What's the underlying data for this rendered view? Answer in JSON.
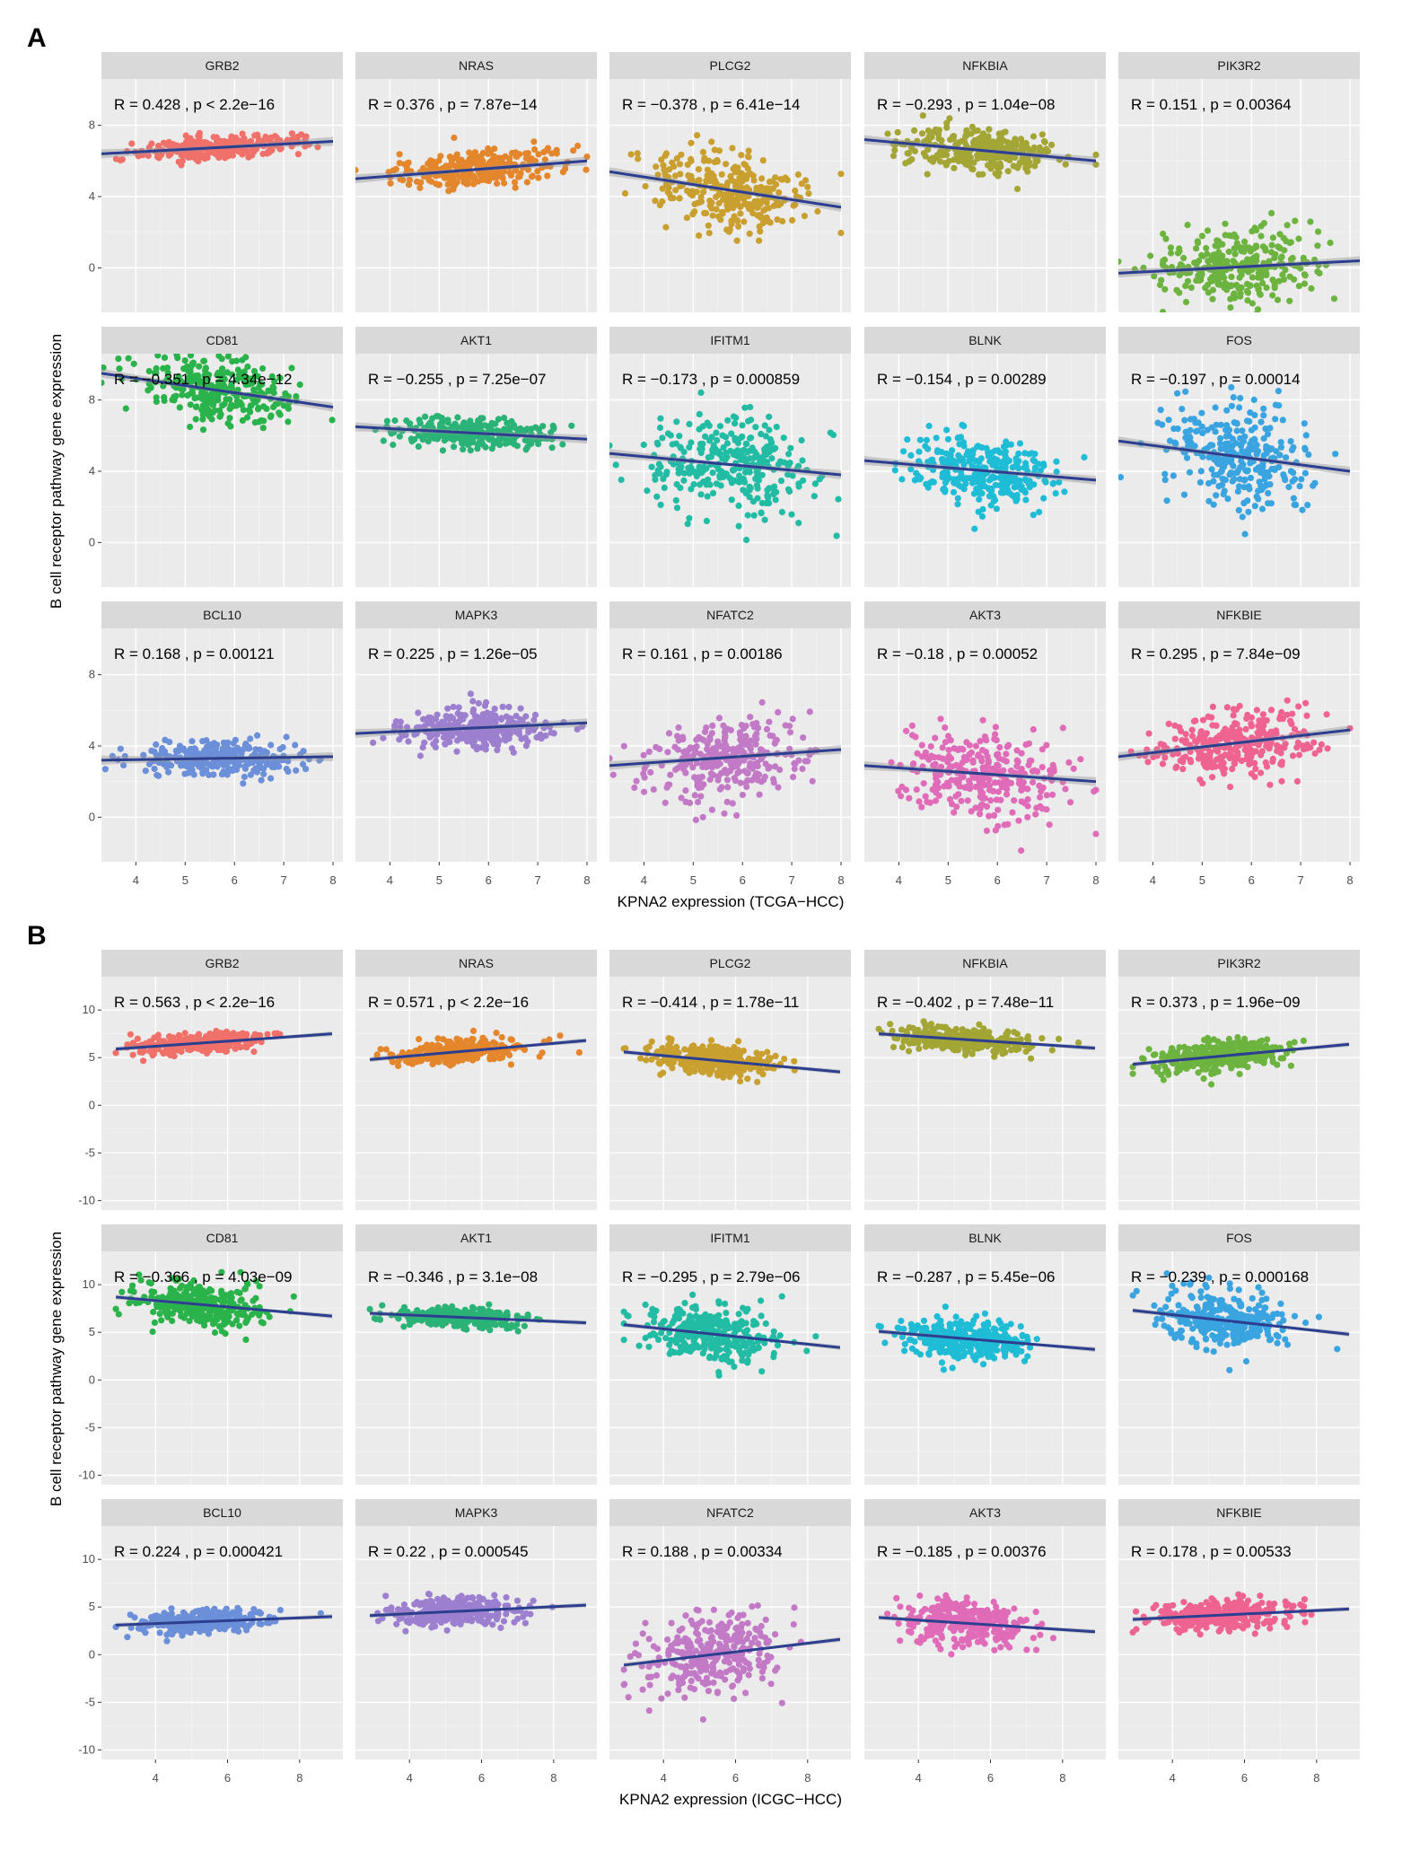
{
  "figure": {
    "panel_letters": [
      "A",
      "B"
    ]
  },
  "colors": {
    "fit_line": "#2c3e8f",
    "band": "#999999",
    "genes": {
      "GRB2": "#f0706a",
      "NRAS": "#e3862c",
      "PLCG2": "#c9a030",
      "NFKBIA": "#a3a535",
      "PIK3R2": "#6db33f",
      "CD81": "#2ab34a",
      "AKT1": "#2bb377",
      "IFITM1": "#22bca4",
      "BLNK": "#1fbcd6",
      "FOS": "#3aa4e0",
      "BCL10": "#6b8fd8",
      "MAPK3": "#9d7fd0",
      "NFATC2": "#c27ac6",
      "AKT3": "#e06bb8",
      "NFKBIE": "#ef6391"
    }
  },
  "chart_data": [
    {
      "type": "scatter",
      "panel": "A",
      "xlabel": "KPNA2 expression (TCGA−HCC)",
      "ylabel": "B cell receptor pathway gene expression",
      "xlim": [
        3.3,
        8.2
      ],
      "ylim": [
        -2.5,
        10.6
      ],
      "xticks": [
        4,
        5,
        6,
        7,
        8
      ],
      "yticks": [
        0,
        4,
        8
      ],
      "facets": [
        {
          "gene": "GRB2",
          "annotation": "R = 0.428 , p < 2.2e−16",
          "R": 0.428,
          "p": "< 2.2e−16",
          "fit": [
            [
              3.3,
              6.4
            ],
            [
              8.0,
              7.1
            ]
          ],
          "cloud": {
            "x_center": 5.7,
            "x_sd": 0.8,
            "y_sd": 0.3
          }
        },
        {
          "gene": "NRAS",
          "annotation": "R = 0.376 , p = 7.87e−14",
          "R": 0.376,
          "p": "7.87e−14",
          "fit": [
            [
              3.3,
              5.0
            ],
            [
              8.0,
              6.0
            ]
          ],
          "cloud": {
            "x_center": 5.7,
            "x_sd": 0.8,
            "y_sd": 0.45
          }
        },
        {
          "gene": "PLCG2",
          "annotation": "R = −0.378 , p = 6.41e−14",
          "R": -0.378,
          "p": "6.41e−14",
          "fit": [
            [
              3.3,
              5.4
            ],
            [
              8.0,
              3.4
            ]
          ],
          "cloud": {
            "x_center": 5.7,
            "x_sd": 0.8,
            "y_sd": 1.1
          }
        },
        {
          "gene": "NFKBIA",
          "annotation": "R = −0.293 , p = 1.04e−08",
          "R": -0.293,
          "p": "1.04e−08",
          "fit": [
            [
              3.3,
              7.2
            ],
            [
              8.0,
              6.0
            ]
          ],
          "cloud": {
            "x_center": 5.7,
            "x_sd": 0.8,
            "y_sd": 0.65
          }
        },
        {
          "gene": "PIK3R2",
          "annotation": "R = 0.151 , p = 0.00364",
          "R": 0.151,
          "p": "0.00364",
          "fit": [
            [
              3.3,
              -0.3
            ],
            [
              8.2,
              0.4
            ]
          ],
          "cloud": {
            "x_center": 5.7,
            "x_sd": 0.8,
            "y_sd": 1.1
          }
        },
        {
          "gene": "CD81",
          "annotation": "R = −0.351 , p = 4.34e−12",
          "R": -0.351,
          "p": "4.34e−12",
          "fit": [
            [
              3.3,
              9.5
            ],
            [
              8.0,
              7.6
            ]
          ],
          "cloud": {
            "x_center": 5.7,
            "x_sd": 0.8,
            "y_sd": 0.9
          }
        },
        {
          "gene": "AKT1",
          "annotation": "R = −0.255 , p = 7.25e−07",
          "R": -0.255,
          "p": "7.25e−07",
          "fit": [
            [
              3.3,
              6.5
            ],
            [
              8.0,
              5.8
            ]
          ],
          "cloud": {
            "x_center": 5.7,
            "x_sd": 0.8,
            "y_sd": 0.4
          }
        },
        {
          "gene": "IFITM1",
          "annotation": "R = −0.173 , p = 0.000859",
          "R": -0.173,
          "p": "0.000859",
          "fit": [
            [
              3.3,
              5.0
            ],
            [
              8.0,
              3.8
            ]
          ],
          "cloud": {
            "x_center": 5.7,
            "x_sd": 0.8,
            "y_sd": 1.4
          }
        },
        {
          "gene": "BLNK",
          "annotation": "R = −0.154 , p = 0.00289",
          "R": -0.154,
          "p": "0.00289",
          "fit": [
            [
              3.3,
              4.6
            ],
            [
              8.0,
              3.5
            ]
          ],
          "cloud": {
            "x_center": 5.7,
            "x_sd": 0.8,
            "y_sd": 0.9
          }
        },
        {
          "gene": "FOS",
          "annotation": "R = −0.197 , p = 0.00014",
          "R": -0.197,
          "p": "0.00014",
          "fit": [
            [
              3.3,
              5.7
            ],
            [
              8.0,
              4.0
            ]
          ],
          "cloud": {
            "x_center": 5.7,
            "x_sd": 0.8,
            "y_sd": 1.5
          }
        },
        {
          "gene": "BCL10",
          "annotation": "R = 0.168 , p = 0.00121",
          "R": 0.168,
          "p": "0.00121",
          "fit": [
            [
              3.3,
              3.2
            ],
            [
              8.0,
              3.4
            ]
          ],
          "cloud": {
            "x_center": 5.7,
            "x_sd": 0.8,
            "y_sd": 0.5
          }
        },
        {
          "gene": "MAPK3",
          "annotation": "R = 0.225 , p = 1.26e−05",
          "R": 0.225,
          "p": "1.26e−05",
          "fit": [
            [
              3.3,
              4.7
            ],
            [
              8.0,
              5.3
            ]
          ],
          "cloud": {
            "x_center": 5.7,
            "x_sd": 0.8,
            "y_sd": 0.55
          }
        },
        {
          "gene": "NFATC2",
          "annotation": "R = 0.161 , p = 0.00186",
          "R": 0.161,
          "p": "0.00186",
          "fit": [
            [
              3.3,
              2.9
            ],
            [
              8.0,
              3.8
            ]
          ],
          "cloud": {
            "x_center": 5.7,
            "x_sd": 0.8,
            "y_sd": 1.1
          }
        },
        {
          "gene": "AKT3",
          "annotation": "R = −0.18 , p = 0.00052",
          "R": -0.18,
          "p": "0.00052",
          "fit": [
            [
              3.3,
              2.9
            ],
            [
              8.0,
              2.0
            ]
          ],
          "cloud": {
            "x_center": 5.7,
            "x_sd": 0.8,
            "y_sd": 1.2
          }
        },
        {
          "gene": "NFKBIE",
          "annotation": "R = 0.295 , p = 7.84e−09",
          "R": 0.295,
          "p": "7.84e−09",
          "fit": [
            [
              3.3,
              3.4
            ],
            [
              8.0,
              4.9
            ]
          ],
          "cloud": {
            "x_center": 5.7,
            "x_sd": 0.8,
            "y_sd": 0.9
          }
        }
      ]
    },
    {
      "type": "scatter",
      "panel": "B",
      "xlabel": "KPNA2 expression (ICGC−HCC)",
      "ylabel": "B cell receptor pathway gene expression",
      "xlim": [
        2.5,
        9.2
      ],
      "ylim": [
        -11,
        13.5
      ],
      "xticks": [
        4,
        6,
        8
      ],
      "yticks": [
        -10,
        -5,
        0,
        5,
        10
      ],
      "facets": [
        {
          "gene": "GRB2",
          "annotation": "R = 0.563 , p < 2.2e−16",
          "R": 0.563,
          "p": "< 2.2e−16",
          "fit": [
            [
              2.9,
              5.9
            ],
            [
              8.9,
              7.5
            ]
          ],
          "cloud": {
            "x_center": 5.3,
            "x_sd": 0.9,
            "y_sd": 0.5
          }
        },
        {
          "gene": "NRAS",
          "annotation": "R = 0.571 , p < 2.2e−16",
          "R": 0.571,
          "p": "< 2.2e−16",
          "fit": [
            [
              2.9,
              4.8
            ],
            [
              8.9,
              6.8
            ]
          ],
          "cloud": {
            "x_center": 5.3,
            "x_sd": 0.9,
            "y_sd": 0.6
          }
        },
        {
          "gene": "PLCG2",
          "annotation": "R = −0.414 , p = 1.78e−11",
          "R": -0.414,
          "p": "1.78e−11",
          "fit": [
            [
              2.9,
              5.6
            ],
            [
              8.9,
              3.5
            ]
          ],
          "cloud": {
            "x_center": 5.3,
            "x_sd": 0.9,
            "y_sd": 0.8
          }
        },
        {
          "gene": "NFKBIA",
          "annotation": "R = −0.402 , p = 7.48e−11",
          "R": -0.402,
          "p": "7.48e−11",
          "fit": [
            [
              2.9,
              7.5
            ],
            [
              8.9,
              6.0
            ]
          ],
          "cloud": {
            "x_center": 5.3,
            "x_sd": 0.9,
            "y_sd": 0.6
          }
        },
        {
          "gene": "PIK3R2",
          "annotation": "R = 0.373 , p = 1.96e−09",
          "R": 0.373,
          "p": "1.96e−09",
          "fit": [
            [
              2.9,
              4.3
            ],
            [
              8.9,
              6.4
            ]
          ],
          "cloud": {
            "x_center": 5.3,
            "x_sd": 0.9,
            "y_sd": 0.8
          }
        },
        {
          "gene": "CD81",
          "annotation": "R = −0.366 , p = 4.03e−09",
          "R": -0.366,
          "p": "4.03e−09",
          "fit": [
            [
              2.9,
              8.7
            ],
            [
              8.9,
              6.7
            ]
          ],
          "cloud": {
            "x_center": 5.3,
            "x_sd": 0.9,
            "y_sd": 1.1
          }
        },
        {
          "gene": "AKT1",
          "annotation": "R = −0.346 , p = 3.1e−08",
          "R": -0.346,
          "p": "3.1e−08",
          "fit": [
            [
              2.9,
              7.0
            ],
            [
              8.9,
              6.0
            ]
          ],
          "cloud": {
            "x_center": 5.3,
            "x_sd": 0.9,
            "y_sd": 0.5
          }
        },
        {
          "gene": "IFITM1",
          "annotation": "R = −0.295 , p = 2.79e−06",
          "R": -0.295,
          "p": "2.79e−06",
          "fit": [
            [
              2.9,
              5.8
            ],
            [
              8.9,
              3.4
            ]
          ],
          "cloud": {
            "x_center": 5.3,
            "x_sd": 0.9,
            "y_sd": 1.4
          }
        },
        {
          "gene": "BLNK",
          "annotation": "R = −0.287 , p = 5.45e−06",
          "R": -0.287,
          "p": "5.45e−06",
          "fit": [
            [
              2.9,
              5.1
            ],
            [
              8.9,
              3.2
            ]
          ],
          "cloud": {
            "x_center": 5.3,
            "x_sd": 0.9,
            "y_sd": 1.1
          }
        },
        {
          "gene": "FOS",
          "annotation": "R = −0.239 , p = 0.000168",
          "R": -0.239,
          "p": "0.000168",
          "fit": [
            [
              2.9,
              7.3
            ],
            [
              8.9,
              4.8
            ]
          ],
          "cloud": {
            "x_center": 5.3,
            "x_sd": 0.9,
            "y_sd": 1.5
          }
        },
        {
          "gene": "BCL10",
          "annotation": "R = 0.224 , p = 0.000421",
          "R": 0.224,
          "p": "0.000421",
          "fit": [
            [
              2.9,
              3.1
            ],
            [
              8.9,
              4.0
            ]
          ],
          "cloud": {
            "x_center": 5.3,
            "x_sd": 0.9,
            "y_sd": 0.6
          }
        },
        {
          "gene": "MAPK3",
          "annotation": "R = 0.22 , p = 0.000545",
          "R": 0.22,
          "p": "0.000545",
          "fit": [
            [
              2.9,
              4.1
            ],
            [
              8.9,
              5.2
            ]
          ],
          "cloud": {
            "x_center": 5.3,
            "x_sd": 0.9,
            "y_sd": 0.7
          }
        },
        {
          "gene": "NFATC2",
          "annotation": "R = 0.188 , p = 0.00334",
          "R": 0.188,
          "p": "0.00334",
          "fit": [
            [
              2.9,
              -1.1
            ],
            [
              8.9,
              1.6
            ]
          ],
          "cloud": {
            "x_center": 5.3,
            "x_sd": 0.9,
            "y_sd": 2.0
          }
        },
        {
          "gene": "AKT3",
          "annotation": "R = −0.185 , p = 0.00376",
          "R": -0.185,
          "p": "0.00376",
          "fit": [
            [
              2.9,
              3.9
            ],
            [
              8.9,
              2.4
            ]
          ],
          "cloud": {
            "x_center": 5.3,
            "x_sd": 0.9,
            "y_sd": 1.2
          }
        },
        {
          "gene": "NFKBIE",
          "annotation": "R = 0.178 , p = 0.00533",
          "R": 0.178,
          "p": "0.00533",
          "fit": [
            [
              2.9,
              3.7
            ],
            [
              8.9,
              4.8
            ]
          ],
          "cloud": {
            "x_center": 5.3,
            "x_sd": 0.9,
            "y_sd": 0.8
          }
        }
      ]
    }
  ]
}
